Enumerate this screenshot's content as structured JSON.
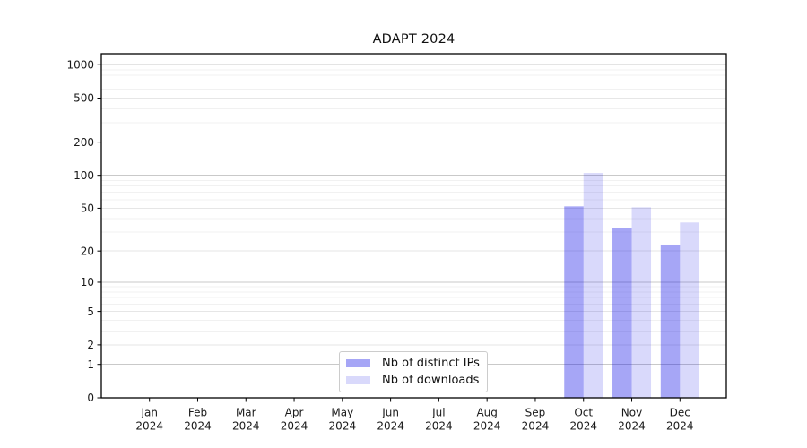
{
  "chart_data": {
    "type": "bar",
    "title": "ADAPT 2024",
    "year_label": "2024",
    "categories": [
      "Jan",
      "Feb",
      "Mar",
      "Apr",
      "May",
      "Jun",
      "Jul",
      "Aug",
      "Sep",
      "Oct",
      "Nov",
      "Dec"
    ],
    "series": [
      {
        "name": "Nb of distinct IPs",
        "color": "rgba(0,0,230,0.35)",
        "values": [
          0,
          0,
          0,
          0,
          0,
          0,
          0,
          0,
          0,
          52,
          33,
          23
        ]
      },
      {
        "name": "Nb of downloads",
        "color": "rgba(0,0,230,0.15)",
        "values": [
          0,
          0,
          0,
          0,
          0,
          0,
          0,
          0,
          0,
          105,
          51,
          37
        ]
      }
    ],
    "y_axis": {
      "scale": "log(v+1)",
      "ticks": [
        0,
        1,
        2,
        5,
        10,
        20,
        50,
        100,
        200,
        500,
        1000
      ],
      "minor_ticks": [
        3,
        4,
        6,
        7,
        8,
        9,
        30,
        40,
        60,
        70,
        80,
        90,
        300,
        400,
        600,
        700,
        800,
        900
      ],
      "top_value": 1280
    },
    "legend_position": "bottom-center",
    "grid": {
      "decade_line_color": "#c9c9c9",
      "major_line_color": "#e6e6e6",
      "minor_line_color": "#f1f1f1"
    },
    "axis_color": "#000000",
    "text_color": "#1a1a1a"
  }
}
